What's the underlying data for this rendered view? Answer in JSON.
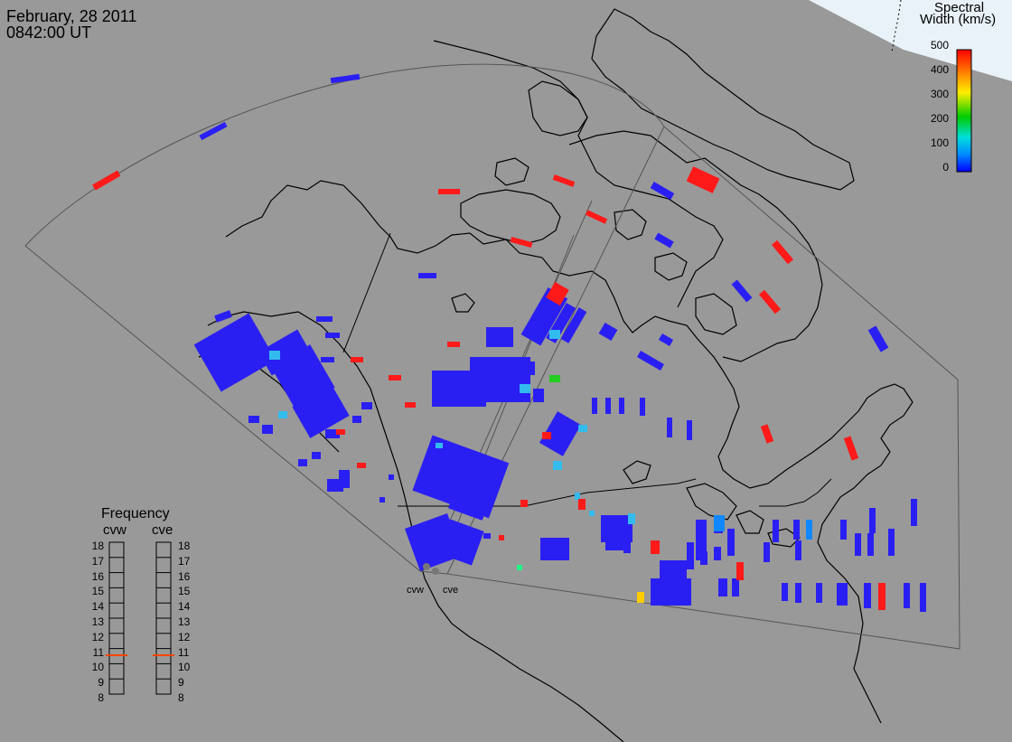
{
  "header": {
    "date": "February, 28 2011",
    "time": "0842:00 UT"
  },
  "legend": {
    "title_line1": "Spectral",
    "title_line2": "Width (km/s)",
    "min": 0,
    "max": 500,
    "ticks": [
      "500",
      "400",
      "300",
      "200",
      "100",
      "0"
    ],
    "ramp_colors": [
      "#ff0000",
      "#ff8800",
      "#ffee00",
      "#00cc00",
      "#00dddd",
      "#0088ff",
      "#0000ff"
    ]
  },
  "frequency": {
    "title": "Frequency",
    "radars": [
      {
        "name": "cvw",
        "selected": 10.8
      },
      {
        "name": "cve",
        "selected": 10.8
      }
    ],
    "scale": [
      "18",
      "17",
      "16",
      "15",
      "14",
      "13",
      "12",
      "11",
      "10",
      "9",
      "8"
    ],
    "marker_color": "#ff4400"
  },
  "radar_sites": [
    "cvw",
    "cve"
  ],
  "colors": {
    "background": "#999999",
    "daylight": "#e8f2f8",
    "low_width": "#2a1ff2",
    "mid_width": "#33bbee",
    "high_width": "#ff1a1a"
  }
}
